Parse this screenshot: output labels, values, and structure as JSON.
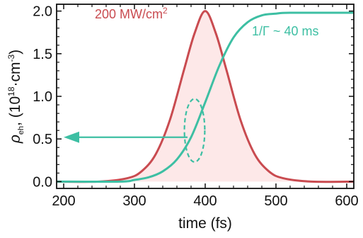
{
  "chart_data": {
    "type": "line",
    "xlabel": "time (fs)",
    "ylabel": {
      "symbol": "ρ",
      "subscript": "eh",
      "units_prefix": ", (10",
      "units_exp": "18",
      "units_mid": "·cm",
      "units_exp2": "-3",
      "units_suffix": ")"
    },
    "xlim": [
      190,
      610
    ],
    "ylim": [
      -0.08,
      2.08
    ],
    "xticks": [
      200,
      300,
      400,
      500,
      600
    ],
    "yticks": [
      0.0,
      0.5,
      1.0,
      1.5,
      2.0
    ],
    "xtick_labels": [
      "200",
      "300",
      "400",
      "500",
      "600"
    ],
    "ytick_labels": [
      "0.0",
      "0.5",
      "1.0",
      "1.5",
      "2.0"
    ],
    "series": [
      {
        "kind": "gaussian_pulse",
        "label_text": "200 MW/cm",
        "label_sup": "2",
        "color": "#c94b50",
        "fill_color": "#fde8e8",
        "x": [
          190,
          250,
          290,
          310,
          330,
          350,
          370,
          385,
          400,
          415,
          430,
          450,
          470,
          490,
          510,
          550,
          610
        ],
        "y": [
          0.0,
          0.0,
          0.04,
          0.12,
          0.32,
          0.72,
          1.31,
          1.74,
          2.0,
          1.74,
          1.31,
          0.72,
          0.32,
          0.12,
          0.04,
          0.0,
          0.0
        ]
      },
      {
        "kind": "rising_population",
        "label_text": "1/Γ ~ 40 ms",
        "color": "#3dbfa3",
        "x": [
          190,
          280,
          300,
          320,
          340,
          360,
          380,
          400,
          420,
          440,
          460,
          480,
          500,
          520,
          610
        ],
        "y": [
          0.0,
          0.0,
          0.02,
          0.05,
          0.12,
          0.26,
          0.52,
          0.93,
          1.36,
          1.69,
          1.87,
          1.95,
          1.97,
          1.98,
          1.98
        ]
      }
    ],
    "annotations": {
      "arrow": {
        "from_x": 375,
        "to_x": 200,
        "y": 0.52,
        "color": "#3dbfa3"
      },
      "ellipse": {
        "cx": 385,
        "cy": 0.6,
        "rx": 9,
        "ry": 0.37,
        "color": "#3dbfa3"
      }
    },
    "grid": false,
    "legend": "none"
  }
}
